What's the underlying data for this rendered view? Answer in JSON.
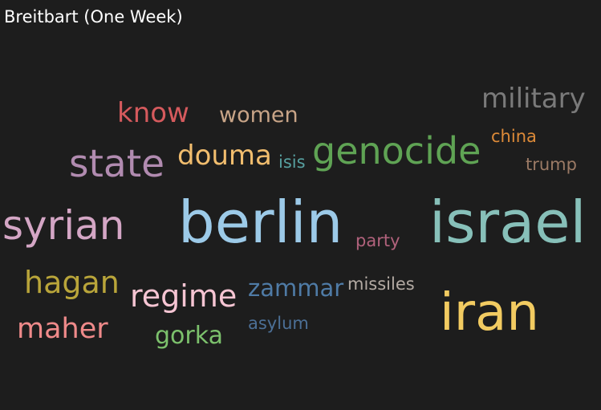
{
  "title": "Breitbart (One Week)",
  "words": {
    "military": {
      "text": "military",
      "color": "#7a7a7a"
    },
    "know": {
      "text": "know",
      "color": "#d55a5d"
    },
    "women": {
      "text": "women",
      "color": "#c8a487"
    },
    "china": {
      "text": "china",
      "color": "#dd8a38"
    },
    "genocide": {
      "text": "genocide",
      "color": "#5fa354"
    },
    "state": {
      "text": "state",
      "color": "#b18bb0"
    },
    "douma": {
      "text": "douma",
      "color": "#f1bd6e"
    },
    "isis": {
      "text": "isis",
      "color": "#57a0a0"
    },
    "trump": {
      "text": "trump",
      "color": "#9b7a65"
    },
    "syrian": {
      "text": "syrian",
      "color": "#d4a6c5"
    },
    "berlin": {
      "text": "berlin",
      "color": "#9ccae8"
    },
    "party": {
      "text": "party",
      "color": "#b1627c"
    },
    "israel": {
      "text": "israel",
      "color": "#87c0b9"
    },
    "hagan": {
      "text": "hagan",
      "color": "#b9a53a"
    },
    "regime": {
      "text": "regime",
      "color": "#f6c5d3"
    },
    "zammar": {
      "text": "zammar",
      "color": "#4f7ba6"
    },
    "missiles": {
      "text": "missiles",
      "color": "#b3aaa3"
    },
    "iran": {
      "text": "iran",
      "color": "#f2cb61"
    },
    "maher": {
      "text": "maher",
      "color": "#ef8a8a"
    },
    "asylum": {
      "text": "asylum",
      "color": "#4c7097"
    },
    "gorka": {
      "text": "gorka",
      "color": "#7cc16c"
    }
  }
}
